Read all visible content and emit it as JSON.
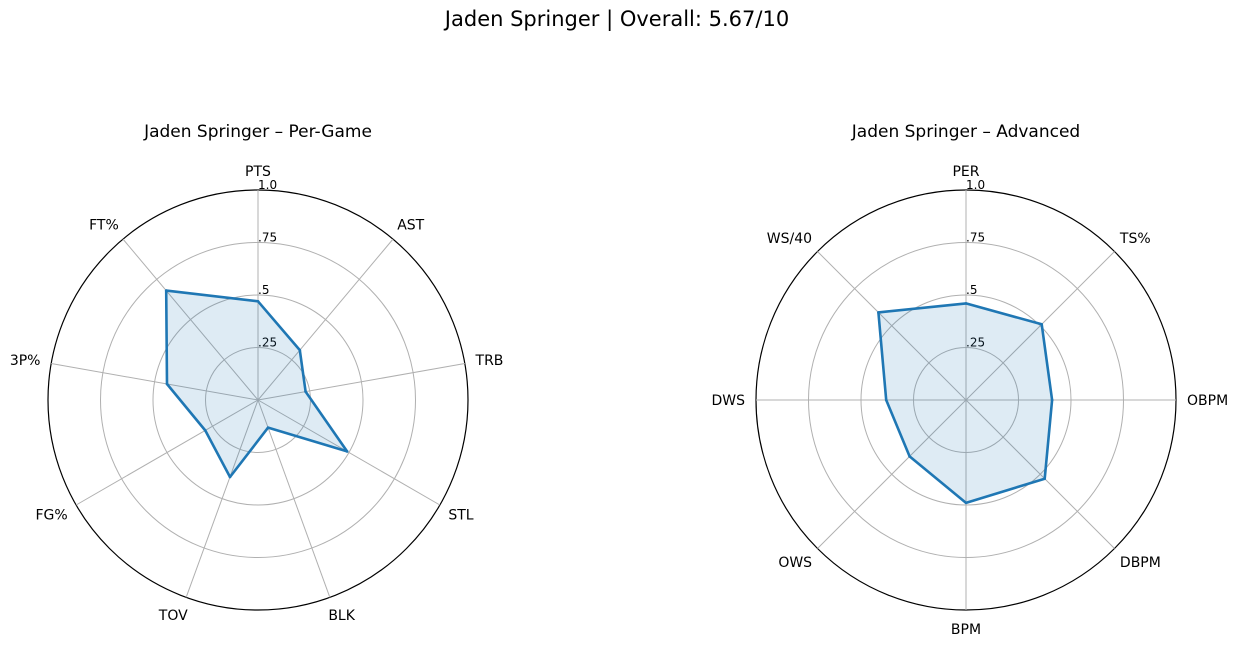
{
  "suptitle": "Jaden Springer | Overall: 5.67/10",
  "chart_data": [
    {
      "type": "radar",
      "title": "Jaden Springer – Per-Game",
      "axes": [
        "PTS",
        "AST",
        "TRB",
        "STL",
        "BLK",
        "TOV",
        "FG%",
        "3P%",
        "FT%"
      ],
      "values": [
        0.47,
        0.31,
        0.23,
        0.49,
        0.14,
        0.39,
        0.29,
        0.44,
        0.68
      ],
      "rlim": [
        0,
        1
      ],
      "r_ticks": [
        0.25,
        0.5,
        0.75,
        1.0
      ],
      "r_tick_labels": [
        ".25",
        ".5",
        ".75",
        "1.0"
      ],
      "grid": true,
      "line_color": "#1f77b4",
      "fill_color": "#1f77b4"
    },
    {
      "type": "radar",
      "title": "Jaden Springer – Advanced",
      "axes": [
        "PER",
        "TS%",
        "OBPM",
        "DBPM",
        "BPM",
        "OWS",
        "DWS",
        "WS/40"
      ],
      "values": [
        0.46,
        0.51,
        0.41,
        0.53,
        0.49,
        0.38,
        0.38,
        0.59
      ],
      "rlim": [
        0,
        1
      ],
      "r_ticks": [
        0.25,
        0.5,
        0.75,
        1.0
      ],
      "r_tick_labels": [
        ".25",
        ".5",
        ".75",
        "1.0"
      ],
      "grid": true,
      "line_color": "#1f77b4",
      "fill_color": "#1f77b4"
    }
  ]
}
